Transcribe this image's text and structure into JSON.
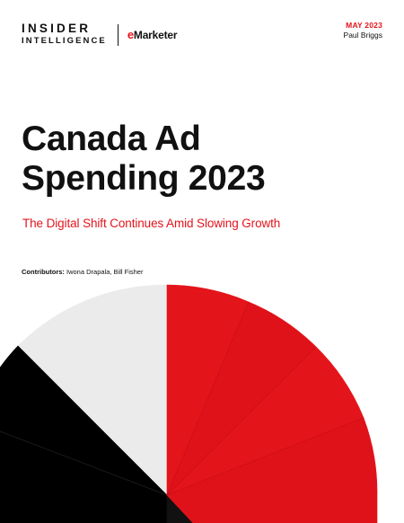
{
  "header": {
    "brand_line1": "INSIDER",
    "brand_line2": "INTELLIGENCE",
    "partner_mark": "e",
    "partner_name": "Marketer",
    "date": "MAY 2023",
    "author": "Paul Briggs"
  },
  "report": {
    "title_line1": "Canada Ad",
    "title_line2": "Spending 2023",
    "subtitle": "The Digital Shift Continues Amid Slowing Growth",
    "contributors_label": "Contributors:",
    "contributors_names": " Iwona Drapala, Bill Fisher"
  },
  "colors": {
    "accent": "#e4141b",
    "dark": "#000000",
    "light": "#ebebeb"
  }
}
